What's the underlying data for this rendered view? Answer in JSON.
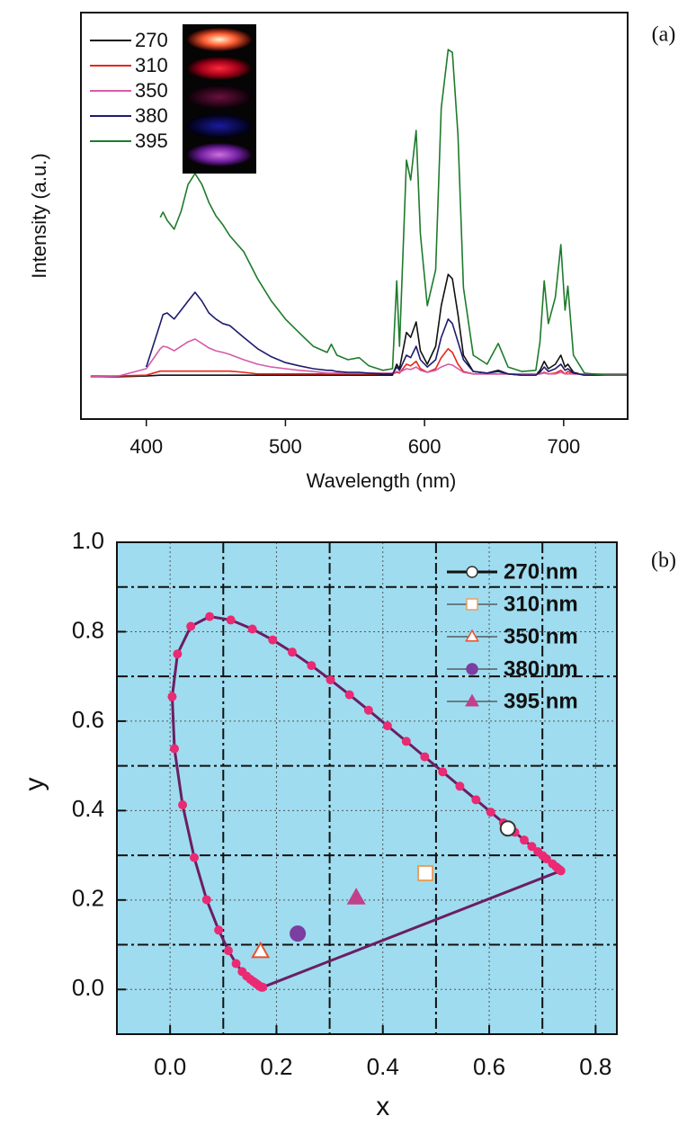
{
  "chart_data": [
    {
      "type": "line",
      "panel_label": "(a)",
      "xlabel": "Wavelength (nm)",
      "ylabel": "Intensity (a.u.)",
      "xlim": [
        353,
        746
      ],
      "ylim": [
        -10,
        90
      ],
      "xticks": [
        400,
        500,
        600,
        700
      ],
      "legend": "upper left",
      "x": [
        360,
        380,
        400,
        410,
        412,
        415,
        420,
        425,
        430,
        435,
        440,
        445,
        450,
        455,
        460,
        470,
        480,
        490,
        500,
        510,
        520,
        530,
        533,
        537,
        545,
        553,
        560,
        570,
        577,
        580,
        582,
        587,
        590,
        594,
        597,
        602,
        608,
        612,
        617,
        620,
        624,
        628,
        635,
        645,
        653,
        660,
        670,
        680,
        683,
        686,
        689,
        694,
        698,
        701,
        703,
        707,
        715,
        730,
        746
      ],
      "series": [
        {
          "name": "270",
          "color": "#111111",
          "values": [
            0.4,
            0.4,
            0.6,
            0.8,
            0.8,
            0.8,
            0.8,
            0.8,
            0.8,
            0.8,
            0.8,
            0.8,
            0.8,
            0.8,
            0.8,
            0.8,
            0.8,
            0.8,
            0.8,
            0.8,
            0.8,
            0.8,
            0.8,
            0.8,
            0.8,
            0.8,
            0.8,
            0.8,
            0.8,
            3.5,
            2.4,
            11.3,
            10.1,
            13.9,
            6.8,
            3.5,
            7.9,
            17.9,
            25.6,
            24.5,
            15.7,
            5.7,
            1.7,
            1.3,
            2,
            1.1,
            0.8,
            0.8,
            2,
            4.2,
            2.4,
            3.5,
            5.7,
            2.8,
            3.5,
            1.5,
            0.8,
            0.8,
            0.8
          ]
        },
        {
          "name": "310",
          "color": "#e8261c",
          "values": [
            0.6,
            0.6,
            0.8,
            1.8,
            1.8,
            1.8,
            1.8,
            1.8,
            1.8,
            1.8,
            1.8,
            1.8,
            1.8,
            1.8,
            1.8,
            1.5,
            1.1,
            1.1,
            1.1,
            1.1,
            1.1,
            1.1,
            1.1,
            1.1,
            1.1,
            1.1,
            1.1,
            1.1,
            1.1,
            1.5,
            1.3,
            3.5,
            3.1,
            4.2,
            2.4,
            1.5,
            2.4,
            5.1,
            7.3,
            6.4,
            3.5,
            1.7,
            1.1,
            1.1,
            1.1,
            1.1,
            1.1,
            1.1,
            1.1,
            1.5,
            1.1,
            1.3,
            2,
            1.1,
            1.7,
            1.1,
            1.1,
            1.1,
            1.1
          ]
        },
        {
          "name": "350",
          "color": "#d65aa8",
          "values": [
            0.4,
            0.6,
            2.4,
            7.3,
            7.9,
            7.7,
            6.8,
            7.9,
            9,
            9.7,
            8.6,
            7.5,
            6.8,
            6.4,
            5.9,
            4.6,
            3.5,
            2.8,
            2.4,
            2,
            1.7,
            1.3,
            1.3,
            1.3,
            1.3,
            1.3,
            1.3,
            1.3,
            1.3,
            1.7,
            1.5,
            2.4,
            2.2,
            2.8,
            2,
            1.5,
            2,
            2.8,
            3.5,
            3.3,
            2.4,
            1.5,
            1.1,
            1.1,
            1.1,
            1.1,
            1.1,
            1.1,
            1.1,
            1.3,
            1.1,
            1.1,
            1.5,
            1.1,
            1.1,
            1.1,
            1.1,
            1.1,
            1.1
          ]
        },
        {
          "name": "380",
          "color": "#1c1c6e",
          "values": [
            null,
            null,
            2.8,
            13.5,
            15.7,
            16.1,
            14.6,
            16.8,
            19,
            21.2,
            19,
            16.1,
            14.6,
            13.5,
            13,
            10.1,
            7.3,
            5.3,
            3.9,
            3.1,
            2.4,
            2,
            2,
            1.7,
            1.5,
            1.5,
            1.3,
            1.1,
            1.1,
            2.8,
            2,
            5.7,
            5.1,
            7.9,
            4.6,
            2.8,
            4.6,
            10.1,
            14.6,
            13.5,
            9,
            4.6,
            1.7,
            1.3,
            1.7,
            1.1,
            0.8,
            0.8,
            1.5,
            2.8,
            1.7,
            2.4,
            3.5,
            2,
            2.4,
            1.3,
            0.8,
            0.8,
            0.8
          ]
        },
        {
          "name": "395",
          "color": "#1e7b2c",
          "values": [
            null,
            null,
            null,
            39.6,
            40.9,
            38.9,
            36.7,
            41.1,
            47.7,
            50.4,
            47.7,
            43.3,
            40,
            37.8,
            35.1,
            31.2,
            24.5,
            19,
            14.6,
            11.2,
            7.9,
            6.4,
            8.4,
            5.7,
            4.6,
            5.1,
            3.1,
            2,
            2.4,
            24,
            7.9,
            53.7,
            48.8,
            61,
            35.5,
            17.9,
            26.7,
            66.5,
            80.9,
            80.2,
            59.9,
            22.3,
            5.7,
            3.5,
            8.6,
            2.8,
            1.7,
            2,
            9,
            24,
            13.5,
            20,
            32.9,
            16.8,
            22.7,
            5.7,
            1.3,
            0.8,
            0.8
          ]
        }
      ]
    },
    {
      "type": "scatter",
      "panel_label": "(b)",
      "xlabel": "x",
      "ylabel": "y",
      "xlim": [
        -0.1,
        0.84
      ],
      "ylim": [
        -0.1,
        1.0
      ],
      "xticks": [
        {
          "value": 0,
          "label": "0.0"
        },
        0.2,
        0.4,
        0.6,
        0.8
      ],
      "yticks": [
        {
          "value": 0,
          "label": "0.0"
        },
        0.2,
        0.4,
        0.6,
        0.8,
        {
          "value": 1,
          "label": "1.0"
        }
      ],
      "xgrid_major": [
        0.1,
        0.3,
        0.5,
        0.7
      ],
      "ygrid_major": [
        0.1,
        0.3,
        0.5,
        0.7,
        0.9
      ],
      "background": "#9fdcef",
      "legend": "upper right",
      "locus": {
        "color": "#ea2a72",
        "line_color": "#6b1e63",
        "x": [
          0.1741,
          0.1714,
          0.1689,
          0.1669,
          0.1644,
          0.1611,
          0.1566,
          0.151,
          0.144,
          0.1355,
          0.1241,
          0.1096,
          0.0913,
          0.0687,
          0.0454,
          0.0235,
          0.0082,
          0.0039,
          0.0139,
          0.0389,
          0.0743,
          0.1142,
          0.1547,
          0.1929,
          0.2296,
          0.2658,
          0.3016,
          0.3373,
          0.3731,
          0.4087,
          0.4441,
          0.4788,
          0.5125,
          0.5448,
          0.5752,
          0.6029,
          0.627,
          0.6482,
          0.6658,
          0.6801,
          0.6915,
          0.7006,
          0.7079,
          0.719,
          0.726,
          0.73,
          0.7334,
          0.7347
        ],
        "y": [
          0.005,
          0.0051,
          0.0069,
          0.0086,
          0.0109,
          0.0138,
          0.0177,
          0.0227,
          0.0297,
          0.0399,
          0.0578,
          0.0868,
          0.1327,
          0.2007,
          0.295,
          0.4127,
          0.5384,
          0.6548,
          0.7502,
          0.812,
          0.8338,
          0.8262,
          0.8059,
          0.7816,
          0.7543,
          0.7243,
          0.6923,
          0.6589,
          0.6245,
          0.5896,
          0.5547,
          0.5202,
          0.4866,
          0.4544,
          0.4242,
          0.3965,
          0.3725,
          0.3514,
          0.334,
          0.3197,
          0.3083,
          0.2993,
          0.292,
          0.2809,
          0.274,
          0.27,
          0.2666,
          0.2653
        ]
      },
      "series": [
        {
          "name": "270 nm",
          "marker": "circle",
          "color": "#ffffff",
          "edge": "#333333",
          "x": [
            0.635
          ],
          "y": [
            0.36
          ]
        },
        {
          "name": "310 nm",
          "marker": "square",
          "color": "#ffffff",
          "edge": "#e8a060",
          "x": [
            0.48
          ],
          "y": [
            0.26
          ]
        },
        {
          "name": "350 nm",
          "marker": "triangle",
          "color": "#ffffff",
          "edge": "#e85030",
          "x": [
            0.17
          ],
          "y": [
            0.085
          ]
        },
        {
          "name": "380 nm",
          "marker": "circle",
          "color": "#7a3fa0",
          "edge": "#7a3fa0",
          "x": [
            0.24
          ],
          "y": [
            0.125
          ]
        },
        {
          "name": "395 nm",
          "marker": "triangle",
          "color": "#c2408a",
          "edge": "#c2408a",
          "x": [
            0.35
          ],
          "y": [
            0.205
          ]
        }
      ]
    }
  ]
}
